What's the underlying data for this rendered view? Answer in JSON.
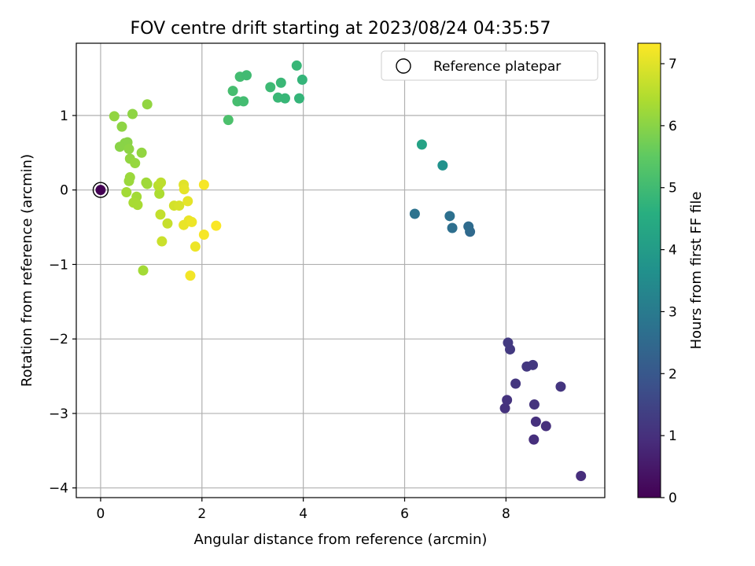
{
  "chart_data": {
    "type": "scatter",
    "title": "FOV centre drift starting at 2023/08/24 04:35:57",
    "xlabel": "Angular distance from reference (arcmin)",
    "ylabel": "Rotation from reference (arcmin)",
    "xlim": [
      -0.48,
      9.95
    ],
    "ylim": [
      -4.13,
      1.97
    ],
    "x_ticks": [
      0,
      2,
      4,
      6,
      8
    ],
    "y_ticks": [
      -4,
      -3,
      -2,
      -1,
      0,
      1
    ],
    "grid": true,
    "legend": {
      "placement": "upper-right",
      "entries": [
        "Reference platepar"
      ]
    },
    "reference_point": {
      "x": 0,
      "y": 0,
      "label": "Reference platepar"
    },
    "colorbar": {
      "label": "Hours from first FF file",
      "colormap": "viridis",
      "range": [
        0,
        7.33
      ],
      "ticks": [
        0,
        1,
        2,
        3,
        4,
        5,
        6,
        7
      ]
    },
    "points": [
      {
        "x": 0.0,
        "y": 0.0,
        "c": 0.0
      },
      {
        "x": 9.48,
        "y": -3.84,
        "c": 0.95
      },
      {
        "x": 8.55,
        "y": -3.35,
        "c": 0.97
      },
      {
        "x": 8.79,
        "y": -3.17,
        "c": 1.0
      },
      {
        "x": 8.59,
        "y": -3.11,
        "c": 1.02
      },
      {
        "x": 7.98,
        "y": -2.93,
        "c": 1.05
      },
      {
        "x": 8.02,
        "y": -2.82,
        "c": 1.07
      },
      {
        "x": 8.56,
        "y": -2.88,
        "c": 1.1
      },
      {
        "x": 9.08,
        "y": -2.64,
        "c": 1.12
      },
      {
        "x": 8.19,
        "y": -2.6,
        "c": 1.15
      },
      {
        "x": 8.41,
        "y": -2.37,
        "c": 1.18
      },
      {
        "x": 8.53,
        "y": -2.35,
        "c": 1.2
      },
      {
        "x": 8.08,
        "y": -2.14,
        "c": 1.22
      },
      {
        "x": 8.04,
        "y": -2.05,
        "c": 1.25
      },
      {
        "x": 7.29,
        "y": -0.56,
        "c": 2.5
      },
      {
        "x": 7.26,
        "y": -0.49,
        "c": 2.55
      },
      {
        "x": 6.94,
        "y": -0.51,
        "c": 2.65
      },
      {
        "x": 6.89,
        "y": -0.35,
        "c": 2.7
      },
      {
        "x": 6.2,
        "y": -0.32,
        "c": 2.75
      },
      {
        "x": 6.75,
        "y": 0.33,
        "c": 3.7
      },
      {
        "x": 6.34,
        "y": 0.61,
        "c": 4.2
      },
      {
        "x": 2.52,
        "y": 0.94,
        "c": 5.2
      },
      {
        "x": 2.61,
        "y": 1.33,
        "c": 5.1
      },
      {
        "x": 2.7,
        "y": 1.19,
        "c": 5.1
      },
      {
        "x": 2.82,
        "y": 1.19,
        "c": 5.05
      },
      {
        "x": 2.75,
        "y": 1.52,
        "c": 5.05
      },
      {
        "x": 2.88,
        "y": 1.54,
        "c": 5.0
      },
      {
        "x": 3.35,
        "y": 1.38,
        "c": 4.95
      },
      {
        "x": 3.5,
        "y": 1.24,
        "c": 4.9
      },
      {
        "x": 3.56,
        "y": 1.44,
        "c": 4.9
      },
      {
        "x": 3.64,
        "y": 1.23,
        "c": 4.85
      },
      {
        "x": 3.87,
        "y": 1.67,
        "c": 4.85
      },
      {
        "x": 3.92,
        "y": 1.23,
        "c": 4.8
      },
      {
        "x": 3.98,
        "y": 1.48,
        "c": 4.8
      },
      {
        "x": 0.27,
        "y": 0.99,
        "c": 6.1
      },
      {
        "x": 0.92,
        "y": 1.15,
        "c": 6.1
      },
      {
        "x": 0.63,
        "y": 1.02,
        "c": 6.05
      },
      {
        "x": 0.42,
        "y": 0.85,
        "c": 6.05
      },
      {
        "x": 0.48,
        "y": 0.63,
        "c": 6.0
      },
      {
        "x": 0.53,
        "y": 0.64,
        "c": 6.0
      },
      {
        "x": 0.38,
        "y": 0.58,
        "c": 6.0
      },
      {
        "x": 0.56,
        "y": 0.55,
        "c": 6.05
      },
      {
        "x": 0.81,
        "y": 0.5,
        "c": 6.1
      },
      {
        "x": 0.58,
        "y": 0.42,
        "c": 6.1
      },
      {
        "x": 0.68,
        "y": 0.36,
        "c": 6.15
      },
      {
        "x": 0.58,
        "y": 0.17,
        "c": 6.2
      },
      {
        "x": 0.56,
        "y": 0.12,
        "c": 6.2
      },
      {
        "x": 0.9,
        "y": 0.1,
        "c": 6.25
      },
      {
        "x": 0.92,
        "y": 0.08,
        "c": 6.25
      },
      {
        "x": 0.51,
        "y": -0.03,
        "c": 6.3
      },
      {
        "x": 0.71,
        "y": -0.09,
        "c": 6.3
      },
      {
        "x": 0.65,
        "y": -0.17,
        "c": 6.35
      },
      {
        "x": 0.73,
        "y": -0.2,
        "c": 6.35
      },
      {
        "x": 0.84,
        "y": -1.08,
        "c": 6.3
      },
      {
        "x": 1.16,
        "y": -0.05,
        "c": 6.4
      },
      {
        "x": 1.14,
        "y": 0.06,
        "c": 6.55
      },
      {
        "x": 1.19,
        "y": 0.1,
        "c": 6.6
      },
      {
        "x": 1.18,
        "y": -0.33,
        "c": 6.65
      },
      {
        "x": 1.32,
        "y": -0.45,
        "c": 6.7
      },
      {
        "x": 1.21,
        "y": -0.69,
        "c": 6.75
      },
      {
        "x": 1.45,
        "y": -0.21,
        "c": 6.85
      },
      {
        "x": 1.55,
        "y": -0.21,
        "c": 6.9
      },
      {
        "x": 1.64,
        "y": 0.07,
        "c": 7.0
      },
      {
        "x": 1.65,
        "y": 0.01,
        "c": 7.05
      },
      {
        "x": 1.72,
        "y": -0.15,
        "c": 7.05
      },
      {
        "x": 1.64,
        "y": -0.47,
        "c": 7.1
      },
      {
        "x": 1.74,
        "y": -0.41,
        "c": 7.1
      },
      {
        "x": 1.8,
        "y": -0.43,
        "c": 7.15
      },
      {
        "x": 1.87,
        "y": -0.76,
        "c": 7.15
      },
      {
        "x": 1.77,
        "y": -1.15,
        "c": 7.2
      },
      {
        "x": 2.04,
        "y": 0.07,
        "c": 7.25
      },
      {
        "x": 2.04,
        "y": -0.6,
        "c": 7.25
      },
      {
        "x": 2.28,
        "y": -0.48,
        "c": 7.3
      }
    ]
  }
}
